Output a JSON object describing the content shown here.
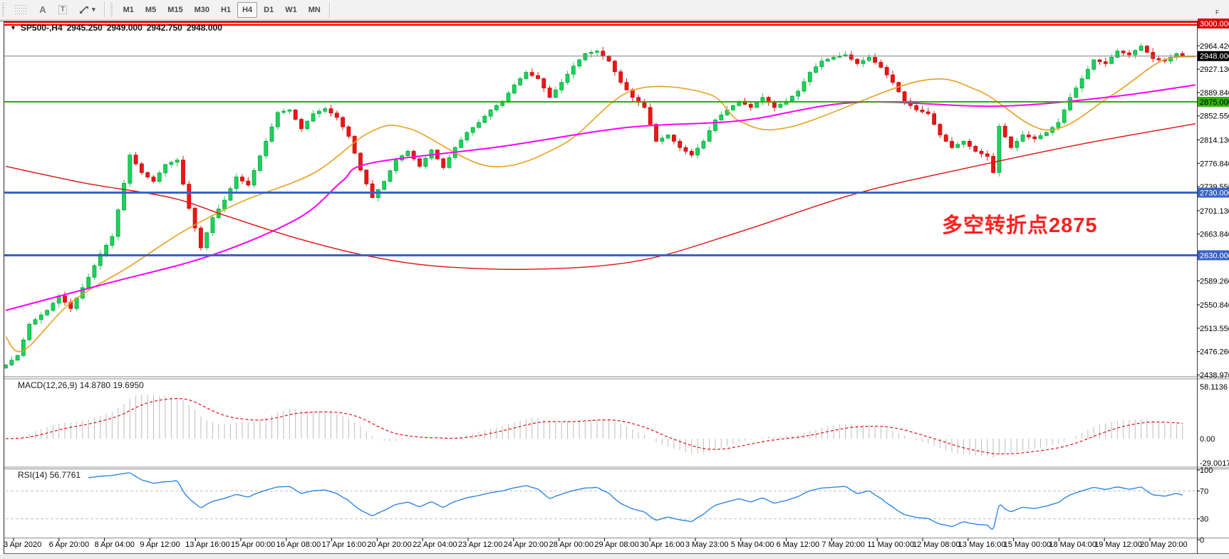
{
  "toolbar": {
    "tools": [
      {
        "name": "fibonacci-retracement",
        "glyph": "F"
      },
      {
        "name": "text",
        "glyph": "A"
      },
      {
        "name": "text-label",
        "glyph": "T"
      },
      {
        "name": "arrows",
        "glyph": "arrows"
      }
    ],
    "timeframes": [
      "M1",
      "M5",
      "M15",
      "M30",
      "H1",
      "H4",
      "D1",
      "W1",
      "MN"
    ],
    "active_timeframe": "H4"
  },
  "header": {
    "symbol": "SP500-,H4",
    "open": "2945.250",
    "high": "2949.000",
    "low": "2942.750",
    "close": "2948.000"
  },
  "indicators": {
    "macd": {
      "label": "MACD(12,26,9)",
      "main_value": "14.8780",
      "signal_value": "19.6950"
    },
    "rsi": {
      "label": "RSI(14)",
      "value": "56.7761"
    }
  },
  "chart_data": {
    "type": "candlestick",
    "symbol": "SP500-",
    "timeframe": "H4",
    "bars": 200,
    "price_axis": {
      "min": 2438.97,
      "max": 3003.0,
      "ticks": [
        2964.42,
        2927.13,
        2889.84,
        2852.55,
        2814.13,
        2776.84,
        2739.55,
        2701.13,
        2663.84,
        2589.26,
        2550.84,
        2513.55,
        2476.26,
        2438.97
      ]
    },
    "current_price": {
      "price": 2948.0,
      "label": "2948.000",
      "line_color": "#7d7d85",
      "badge_bg": "#000000",
      "badge_fg": "#ffffff"
    },
    "levels": [
      {
        "price": 3000.0,
        "label": "3000.000",
        "color": "#ee0000",
        "style": "double",
        "width": 2,
        "badge_bg": "#dd0000",
        "badge_fg": "#ffffff"
      },
      {
        "price": 2875.0,
        "label": "2875.000",
        "color": "#2db200",
        "style": "solid",
        "width": 2,
        "badge_bg": "#2db200",
        "badge_fg": "#000000"
      },
      {
        "price": 2730.0,
        "label": "2730.000",
        "color": "#3a62c8",
        "style": "solid",
        "width": 3,
        "badge_bg": "#3a62c8",
        "badge_fg": "#ffffff"
      },
      {
        "price": 2630.0,
        "label": "2630.000",
        "color": "#3a62c8",
        "style": "solid",
        "width": 3,
        "badge_bg": "#3a62c8",
        "badge_fg": "#ffffff"
      }
    ],
    "close_waypoints": [
      [
        0,
        2455
      ],
      [
        2,
        2470
      ],
      [
        4,
        2520
      ],
      [
        7,
        2542
      ],
      [
        9,
        2565
      ],
      [
        11,
        2545
      ],
      [
        14,
        2595
      ],
      [
        16,
        2632
      ],
      [
        18,
        2660
      ],
      [
        20,
        2745
      ],
      [
        21,
        2790
      ],
      [
        23,
        2762
      ],
      [
        25,
        2748
      ],
      [
        27,
        2775
      ],
      [
        29,
        2782
      ],
      [
        31,
        2705
      ],
      [
        33,
        2642
      ],
      [
        35,
        2690
      ],
      [
        37,
        2718
      ],
      [
        39,
        2755
      ],
      [
        41,
        2742
      ],
      [
        44,
        2812
      ],
      [
        46,
        2858
      ],
      [
        48,
        2862
      ],
      [
        50,
        2832
      ],
      [
        52,
        2856
      ],
      [
        54,
        2864
      ],
      [
        56,
        2850
      ],
      [
        58,
        2820
      ],
      [
        60,
        2766
      ],
      [
        62,
        2722
      ],
      [
        64,
        2748
      ],
      [
        66,
        2782
      ],
      [
        68,
        2796
      ],
      [
        70,
        2772
      ],
      [
        72,
        2798
      ],
      [
        74,
        2770
      ],
      [
        76,
        2802
      ],
      [
        78,
        2826
      ],
      [
        80,
        2842
      ],
      [
        82,
        2862
      ],
      [
        84,
        2876
      ],
      [
        86,
        2902
      ],
      [
        88,
        2922
      ],
      [
        90,
        2912
      ],
      [
        92,
        2882
      ],
      [
        94,
        2906
      ],
      [
        96,
        2932
      ],
      [
        98,
        2952
      ],
      [
        100,
        2956
      ],
      [
        102,
        2940
      ],
      [
        104,
        2906
      ],
      [
        106,
        2882
      ],
      [
        108,
        2866
      ],
      [
        110,
        2812
      ],
      [
        112,
        2822
      ],
      [
        114,
        2802
      ],
      [
        116,
        2790
      ],
      [
        118,
        2812
      ],
      [
        120,
        2846
      ],
      [
        122,
        2862
      ],
      [
        124,
        2876
      ],
      [
        126,
        2866
      ],
      [
        128,
        2882
      ],
      [
        130,
        2866
      ],
      [
        132,
        2876
      ],
      [
        134,
        2892
      ],
      [
        136,
        2922
      ],
      [
        138,
        2940
      ],
      [
        140,
        2946
      ],
      [
        142,
        2950
      ],
      [
        144,
        2936
      ],
      [
        146,
        2946
      ],
      [
        148,
        2930
      ],
      [
        150,
        2906
      ],
      [
        152,
        2876
      ],
      [
        154,
        2862
      ],
      [
        156,
        2856
      ],
      [
        158,
        2822
      ],
      [
        160,
        2802
      ],
      [
        162,
        2812
      ],
      [
        164,
        2796
      ],
      [
        166,
        2788
      ],
      [
        167,
        2762
      ],
      [
        168,
        2836
      ],
      [
        170,
        2802
      ],
      [
        172,
        2822
      ],
      [
        174,
        2816
      ],
      [
        176,
        2826
      ],
      [
        178,
        2842
      ],
      [
        180,
        2882
      ],
      [
        182,
        2912
      ],
      [
        184,
        2942
      ],
      [
        186,
        2936
      ],
      [
        188,
        2956
      ],
      [
        190,
        2950
      ],
      [
        192,
        2964
      ],
      [
        194,
        2944
      ],
      [
        196,
        2940
      ],
      [
        198,
        2952
      ],
      [
        199,
        2948
      ]
    ],
    "moving_averages": [
      {
        "name": "fast-ma",
        "color": "#e8a01e",
        "width": 1.6,
        "points": [
          [
            8,
            2500
          ],
          [
            33,
            2478
          ],
          [
            100,
            2555
          ],
          [
            180,
            2611
          ],
          [
            260,
            2670
          ],
          [
            340,
            2716
          ],
          [
            440,
            2761
          ],
          [
            520,
            2827
          ],
          [
            575,
            2832
          ],
          [
            688,
            2772
          ],
          [
            790,
            2807
          ],
          [
            887,
            2893
          ],
          [
            993,
            2888
          ],
          [
            1040,
            2843
          ],
          [
            1110,
            2835
          ],
          [
            1290,
            2908
          ],
          [
            1373,
            2893
          ],
          [
            1470,
            2830
          ],
          [
            1560,
            2885
          ],
          [
            1630,
            2940
          ],
          [
            1678,
            2947
          ]
        ]
      },
      {
        "name": "mid-ma",
        "color": "#ff00ff",
        "width": 2.0,
        "points": [
          [
            8,
            2542
          ],
          [
            150,
            2585
          ],
          [
            297,
            2630
          ],
          [
            420,
            2690
          ],
          [
            480,
            2748
          ],
          [
            520,
            2777
          ],
          [
            700,
            2803
          ],
          [
            880,
            2834
          ],
          [
            1040,
            2845
          ],
          [
            1200,
            2874
          ],
          [
            1400,
            2868
          ],
          [
            1560,
            2883
          ],
          [
            1678,
            2902
          ]
        ]
      },
      {
        "name": "slow-ma",
        "color": "#e01010",
        "width": 1.4,
        "points": [
          [
            8,
            2772
          ],
          [
            120,
            2745
          ],
          [
            240,
            2722
          ],
          [
            320,
            2692
          ],
          [
            420,
            2656
          ],
          [
            520,
            2628
          ],
          [
            620,
            2612
          ],
          [
            760,
            2608
          ],
          [
            900,
            2622
          ],
          [
            1040,
            2668
          ],
          [
            1200,
            2728
          ],
          [
            1360,
            2770
          ],
          [
            1520,
            2808
          ],
          [
            1678,
            2840
          ]
        ]
      }
    ],
    "macd": {
      "params": "12,26,9",
      "main": 14.878,
      "signal": 19.695,
      "axis": [
        58.1136,
        0.0,
        -29.0017
      ]
    },
    "rsi": {
      "period": 14,
      "value": 56.7761,
      "axis": [
        100,
        70,
        30,
        0
      ],
      "dashed_levels": [
        70,
        30
      ]
    },
    "annotation": {
      "text": "多空转折点2875",
      "color": "#ff2020"
    },
    "time_labels": [
      "3 Apr 2020",
      "6 Apr 20:00",
      "8 Apr 04:00",
      "9 Apr 12:00",
      "13 Apr 16:00",
      "15 Apr 00:00",
      "16 Apr 08:00",
      "17 Apr 16:00",
      "20 Apr 20:00",
      "22 Apr 04:00",
      "23 Apr 12:00",
      "24 Apr 20:00",
      "28 Apr 00:00",
      "29 Apr 08:00",
      "30 Apr 16:00",
      "3 May 23:00",
      "5 May 04:00",
      "6 May 12:00",
      "7 May 20:00",
      "11 May 00:00",
      "12 May 08:00",
      "13 May 16:00",
      "15 May 00:00",
      "18 May 04:00",
      "19 May 12:00",
      "20 May 20:00"
    ],
    "colors": {
      "up": "#19d459",
      "up_border": "#0ca540",
      "down": "#f01414",
      "down_border": "#c01010",
      "macd_hist": "#bdbdbd",
      "macd_signal": "#e01010",
      "rsi": "#2e86e8",
      "rsi_levels": "#c0c0c0"
    }
  }
}
